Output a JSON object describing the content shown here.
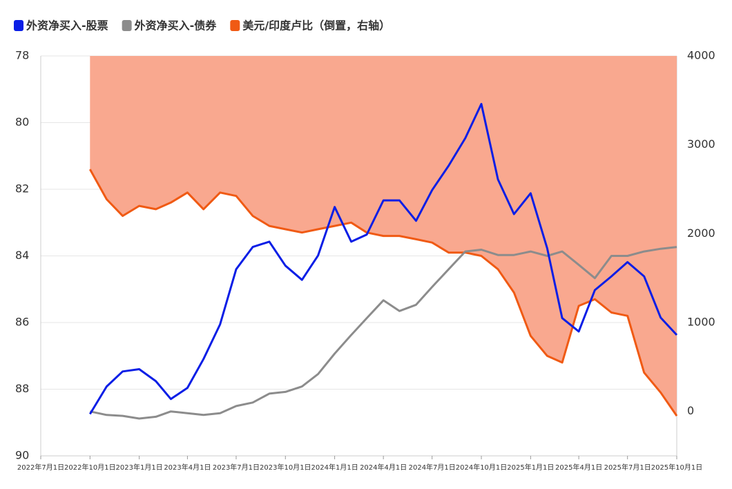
{
  "chart_data": {
    "type": "line",
    "x": [
      "2022-10-01",
      "2022-11-01",
      "2022-12-01",
      "2023-01-01",
      "2023-02-01",
      "2023-03-01",
      "2023-04-01",
      "2023-05-01",
      "2023-06-01",
      "2023-07-01",
      "2023-08-01",
      "2023-09-01",
      "2023-10-01",
      "2023-11-01",
      "2023-12-01",
      "2024-01-01",
      "2024-02-01",
      "2024-03-01",
      "2024-04-01",
      "2024-05-01",
      "2024-06-01",
      "2024-07-01",
      "2024-08-01",
      "2024-09-01",
      "2024-10-01",
      "2024-11-01",
      "2024-12-01",
      "2025-01-01",
      "2025-02-01",
      "2025-03-01",
      "2025-04-01",
      "2025-05-01",
      "2025-06-01",
      "2025-07-01",
      "2025-08-01",
      "2025-09-01",
      "2025-10-01"
    ],
    "series": [
      {
        "name": "外资净买入-股票",
        "color": "#0a1ee6",
        "axis": "y2",
        "values": [
          -30,
          280,
          450,
          475,
          340,
          140,
          265,
          590,
          980,
          1600,
          1850,
          1910,
          1640,
          1480,
          1755,
          2300,
          1910,
          1990,
          2375,
          2375,
          2145,
          2490,
          2765,
          3075,
          3460,
          2610,
          2220,
          2455,
          1835,
          1050,
          900,
          1365,
          1520,
          1680,
          1520,
          1055,
          860
        ]
      },
      {
        "name": "外资净买入-债券",
        "color": "#8c8c8c",
        "axis": "y2",
        "values": [
          0,
          -40,
          -50,
          -80,
          -60,
          0,
          -20,
          -40,
          -20,
          60,
          100,
          200,
          220,
          280,
          420,
          650,
          860,
          1050,
          1250,
          1130,
          1200,
          1400,
          1600,
          1800,
          1820,
          1760,
          1760,
          1800,
          1750,
          1800,
          1650,
          1500,
          1750,
          1750,
          1800,
          1830,
          1850
        ]
      },
      {
        "name": "美元/印度卢比（倒置，右轴）",
        "color": "#f05a14",
        "fill": "#f9a88f",
        "axis": "y",
        "values": [
          81.4,
          82.3,
          82.8,
          82.5,
          82.6,
          82.4,
          82.1,
          82.6,
          82.1,
          82.2,
          82.8,
          83.1,
          83.2,
          83.3,
          83.2,
          83.1,
          83.0,
          83.3,
          83.4,
          83.4,
          83.5,
          83.6,
          83.9,
          83.9,
          84.0,
          84.4,
          85.1,
          86.4,
          87.0,
          87.2,
          85.5,
          85.3,
          85.7,
          85.8,
          87.5,
          88.1,
          88.8
        ]
      }
    ],
    "xlim": [
      "2022-07-01",
      "2025-10-01"
    ],
    "xticks": [
      {
        "value": "2022-07-01",
        "label": "2022年7月1日"
      },
      {
        "value": "2022-10-01",
        "label": "2022年10月1日"
      },
      {
        "value": "2023-01-01",
        "label": "2023年1月1日"
      },
      {
        "value": "2023-04-01",
        "label": "2023年4月1日"
      },
      {
        "value": "2023-07-01",
        "label": "2023年7月1日"
      },
      {
        "value": "2023-10-01",
        "label": "2023年10月1日"
      },
      {
        "value": "2024-01-01",
        "label": "2024年1月1日"
      },
      {
        "value": "2024-04-01",
        "label": "2024年4月1日"
      },
      {
        "value": "2024-07-01",
        "label": "2024年7月1日"
      },
      {
        "value": "2024-10-01",
        "label": "2024年10月1日"
      },
      {
        "value": "2025-01-01",
        "label": "2025年1月1日"
      },
      {
        "value": "2025-04-01",
        "label": "2025年4月1日"
      },
      {
        "value": "2025-07-01",
        "label": "2025年7月1日"
      },
      {
        "value": "2025-10-01",
        "label": "2025年10月1日"
      }
    ],
    "ylim": [
      90,
      78
    ],
    "yticks": [
      78,
      80,
      82,
      84,
      86,
      88,
      90
    ],
    "y2lim": [
      -500,
      4000
    ],
    "y2ticks": [
      0,
      1000,
      2000,
      3000,
      4000
    ],
    "grid": true,
    "legend": "top"
  }
}
